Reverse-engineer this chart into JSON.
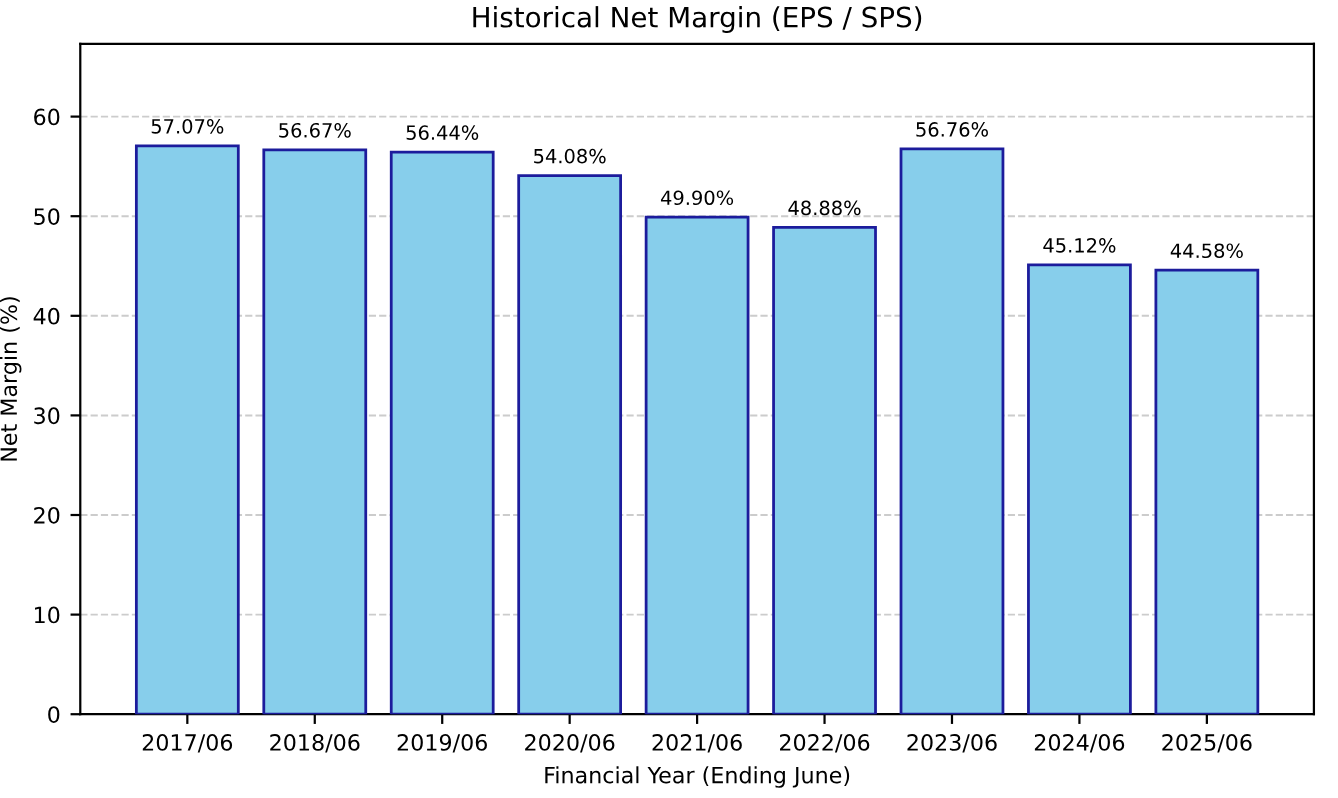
{
  "chart_data": {
    "type": "bar",
    "title": "Historical Net Margin (EPS / SPS)",
    "xlabel": "Financial Year (Ending June)",
    "ylabel": "Net Margin (%)",
    "categories": [
      "2017/06",
      "2018/06",
      "2019/06",
      "2020/06",
      "2021/06",
      "2022/06",
      "2023/06",
      "2024/06",
      "2025/06"
    ],
    "values": [
      57.07,
      56.67,
      56.44,
      54.08,
      49.9,
      48.88,
      56.76,
      45.12,
      44.58
    ],
    "value_labels": [
      "57.07%",
      "56.67%",
      "56.44%",
      "54.08%",
      "49.90%",
      "48.88%",
      "56.76%",
      "45.12%",
      "44.58%"
    ],
    "color": "#87ceeb",
    "ylim": [
      0,
      67.3
    ],
    "yticks": [
      0,
      10,
      20,
      30,
      40,
      50,
      60
    ],
    "grid": "y"
  }
}
